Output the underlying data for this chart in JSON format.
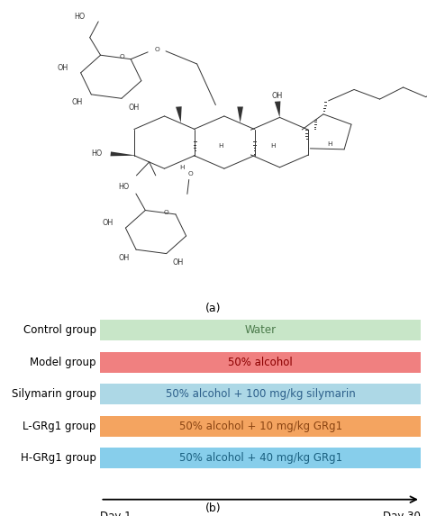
{
  "groups": [
    "Control group",
    "Model group",
    "Silymarin group",
    "L-GRg1 group",
    "H-GRg1 group"
  ],
  "labels": [
    "Water",
    "50% alcohol",
    "50% alcohol + 100 mg/kg silymarin",
    "50% alcohol + 10 mg/kg GRg1",
    "50% alcohol + 40 mg/kg GRg1"
  ],
  "bar_colors": [
    "#c8e6c8",
    "#f08080",
    "#add8e6",
    "#f4a460",
    "#87ceeb"
  ],
  "bar_text_colors": [
    "#4a7a4a",
    "#8b0000",
    "#2c5f8a",
    "#8b4513",
    "#1a6080"
  ],
  "day_start": "Day 1",
  "day_end": "Day 30",
  "label_a": "(a)",
  "label_b": "(b)",
  "bg_color": "#ffffff",
  "fontsize_group": 8.5,
  "fontsize_bar": 8.5,
  "fontsize_day": 8.5,
  "fontsize_label": 9
}
